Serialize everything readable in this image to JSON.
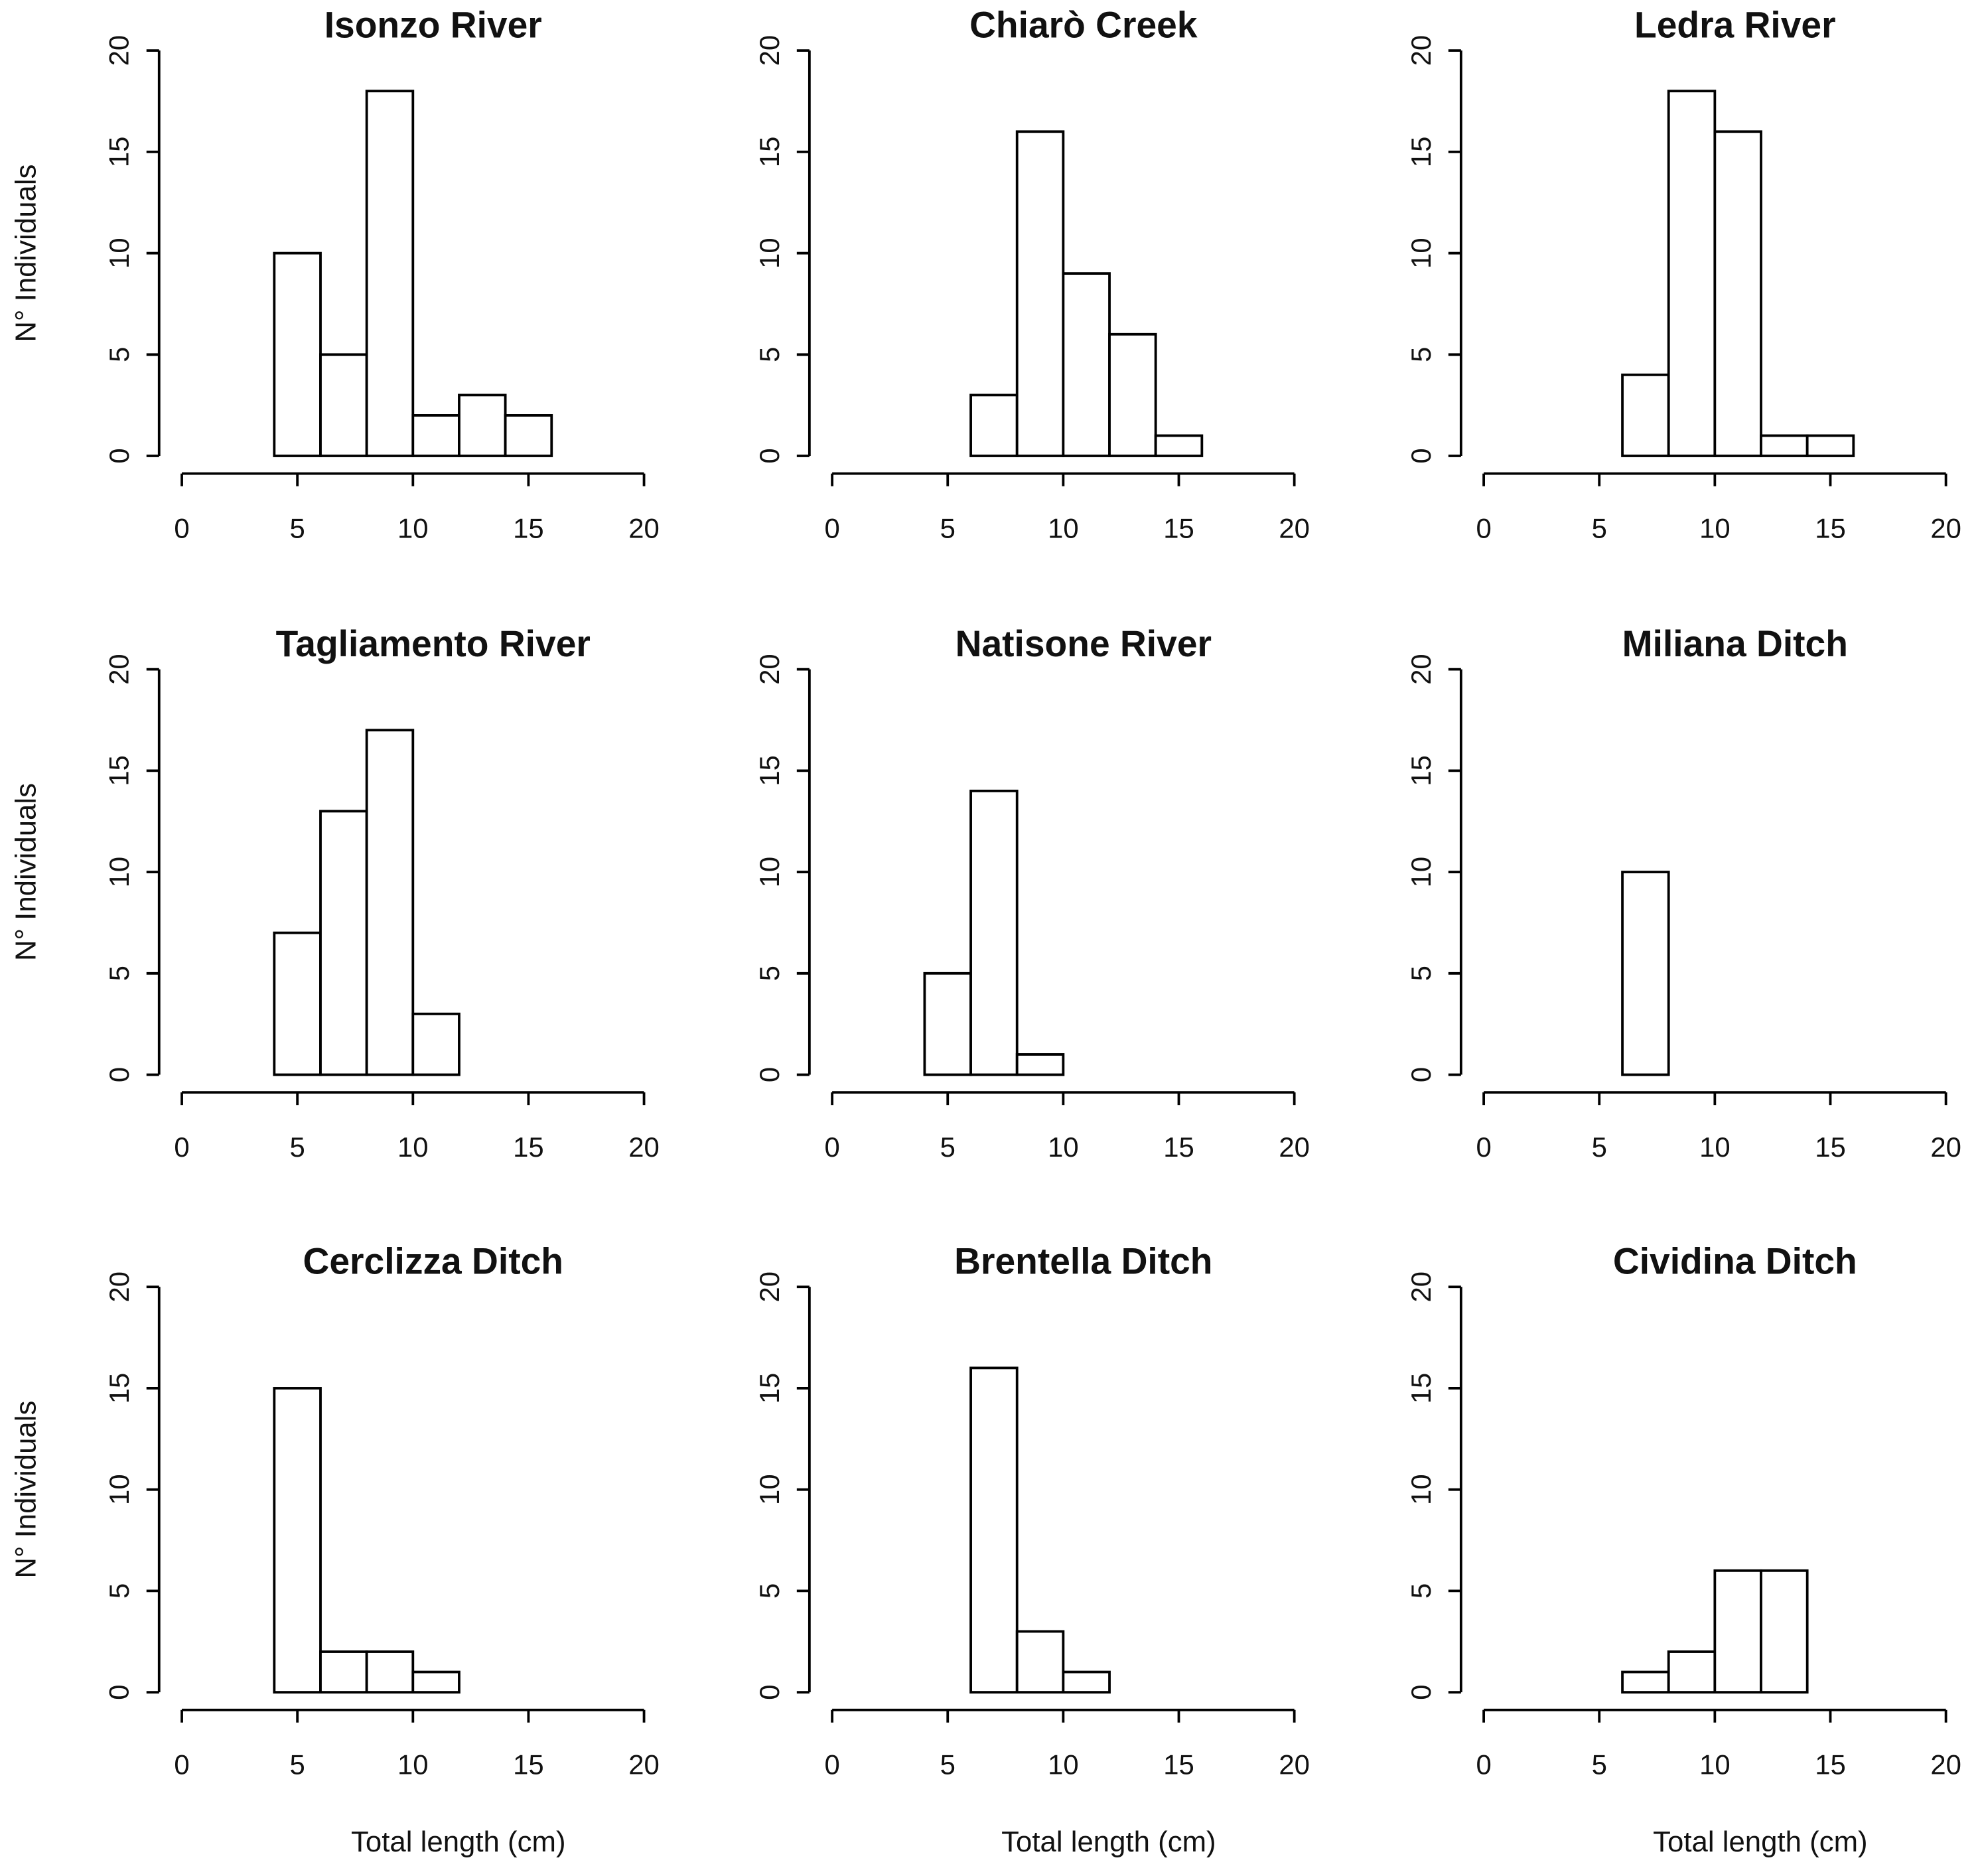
{
  "chart_data": [
    {
      "type": "histogram",
      "title": "Isonzo River",
      "ylabel": "N° Individuals",
      "bins": [
        0,
        2,
        4,
        6,
        8,
        10,
        12,
        14,
        16,
        18,
        20
      ],
      "values": [
        0,
        0,
        10,
        5,
        18,
        2,
        3,
        2,
        0,
        0
      ],
      "xlim": [
        0,
        20
      ],
      "ylim": [
        0,
        20
      ],
      "xticks": [
        0,
        5,
        10,
        15,
        20
      ],
      "yticks": [
        0,
        5,
        10,
        15,
        20
      ],
      "color": "#ffffff"
    },
    {
      "type": "histogram",
      "title": "Chiarò Creek",
      "bins": [
        0,
        2,
        4,
        6,
        8,
        10,
        12,
        14,
        16,
        18,
        20
      ],
      "values": [
        0,
        0,
        0,
        3,
        16,
        9,
        6,
        1,
        0,
        0
      ],
      "xlim": [
        0,
        20
      ],
      "ylim": [
        0,
        20
      ],
      "xticks": [
        0,
        5,
        10,
        15,
        20
      ],
      "yticks": [
        0,
        5,
        10,
        15,
        20
      ],
      "color": "#ffffff"
    },
    {
      "type": "histogram",
      "title": "Ledra River",
      "bins": [
        0,
        2,
        4,
        6,
        8,
        10,
        12,
        14,
        16,
        18,
        20
      ],
      "values": [
        0,
        0,
        0,
        4,
        18,
        16,
        1,
        1,
        0,
        0
      ],
      "xlim": [
        0,
        20
      ],
      "ylim": [
        0,
        20
      ],
      "xticks": [
        0,
        5,
        10,
        15,
        20
      ],
      "yticks": [
        0,
        5,
        10,
        15,
        20
      ],
      "color": "#ffffff"
    },
    {
      "type": "histogram",
      "title": "Tagliamento River",
      "ylabel": "N° Individuals",
      "bins": [
        0,
        2,
        4,
        6,
        8,
        10,
        12,
        14,
        16,
        18,
        20
      ],
      "values": [
        0,
        0,
        7,
        13,
        17,
        3,
        0,
        0,
        0,
        0
      ],
      "xlim": [
        0,
        20
      ],
      "ylim": [
        0,
        20
      ],
      "xticks": [
        0,
        5,
        10,
        15,
        20
      ],
      "yticks": [
        0,
        5,
        10,
        15,
        20
      ],
      "color": "#ffffff"
    },
    {
      "type": "histogram",
      "title": "Natisone River",
      "bins": [
        0,
        2,
        4,
        6,
        8,
        10,
        12,
        14,
        16,
        18,
        20
      ],
      "values": [
        0,
        0,
        5,
        14,
        1,
        0,
        0,
        0,
        0,
        0
      ],
      "xlim": [
        0,
        20
      ],
      "ylim": [
        0,
        20
      ],
      "xticks": [
        0,
        5,
        10,
        15,
        20
      ],
      "yticks": [
        0,
        5,
        10,
        15,
        20
      ],
      "color": "#ffffff"
    },
    {
      "type": "histogram",
      "title": "Miliana Ditch",
      "bins": [
        0,
        2,
        4,
        6,
        8,
        10,
        12,
        14,
        16,
        18,
        20
      ],
      "values": [
        0,
        0,
        0,
        10,
        0,
        0,
        0,
        0,
        0,
        0
      ],
      "xlim": [
        0,
        20
      ],
      "ylim": [
        0,
        20
      ],
      "xticks": [
        0,
        5,
        10,
        15,
        20
      ],
      "yticks": [
        0,
        5,
        10,
        15,
        20
      ],
      "color": "#ffffff"
    },
    {
      "type": "histogram",
      "title": "Cerclizza Ditch",
      "ylabel": "N° Individuals",
      "xlabel": "Total length (cm)",
      "bins": [
        0,
        2,
        4,
        6,
        8,
        10,
        12,
        14,
        16,
        18,
        20
      ],
      "values": [
        0,
        0,
        15,
        2,
        2,
        1,
        0,
        0,
        0,
        0
      ],
      "xlim": [
        0,
        20
      ],
      "ylim": [
        0,
        20
      ],
      "xticks": [
        0,
        5,
        10,
        15,
        20
      ],
      "yticks": [
        0,
        5,
        10,
        15,
        20
      ],
      "color": "#ffffff"
    },
    {
      "type": "histogram",
      "title": "Brentella Ditch",
      "xlabel": "Total length (cm)",
      "bins": [
        0,
        2,
        4,
        6,
        8,
        10,
        12,
        14,
        16,
        18,
        20
      ],
      "values": [
        0,
        0,
        0,
        16,
        3,
        1,
        0,
        0,
        0,
        0
      ],
      "xlim": [
        0,
        20
      ],
      "ylim": [
        0,
        20
      ],
      "xticks": [
        0,
        5,
        10,
        15,
        20
      ],
      "yticks": [
        0,
        5,
        10,
        15,
        20
      ],
      "color": "#ffffff"
    },
    {
      "type": "histogram",
      "title": "Cividina Ditch",
      "xlabel": "Total length (cm)",
      "bins": [
        0,
        2,
        4,
        6,
        8,
        10,
        12,
        14,
        16,
        18,
        20
      ],
      "values": [
        0,
        0,
        0,
        1,
        2,
        6,
        6,
        0,
        0,
        0
      ],
      "xlim": [
        0,
        20
      ],
      "ylim": [
        0,
        20
      ],
      "xticks": [
        0,
        5,
        10,
        15,
        20
      ],
      "yticks": [
        0,
        5,
        10,
        15,
        20
      ],
      "color": "#ffffff"
    }
  ]
}
